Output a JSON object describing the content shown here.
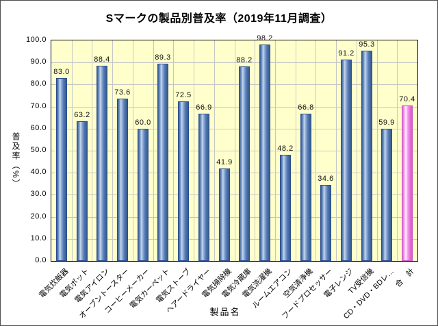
{
  "colors": {
    "plot_background": "#FFFFCC",
    "gridline": "#C6C6C6",
    "axis": "#000000",
    "bar_blue_edge": "#35598F",
    "bar_blue_highlight": "#C6D7EE",
    "bar_total_pink_edge": "#DC60D4",
    "bar_total_pink_highlight": "#FFF4FE"
  },
  "chart_data": {
    "type": "bar",
    "title": "Sマークの製品別普及率（2019年11月調査）",
    "xlabel": "製品名",
    "ylabel": "普及率（%）",
    "ylim": [
      0,
      100
    ],
    "ytick_step": 10,
    "yticks": [
      "0.0",
      "10.0",
      "20.0",
      "30.0",
      "40.0",
      "50.0",
      "60.0",
      "70.0",
      "80.0",
      "90.0",
      "100.0"
    ],
    "grid": true,
    "legend_position": "none",
    "categories": [
      "電気炊飯器",
      "電気ポット",
      "電気アイロン",
      "オーブントースター",
      "コーヒーメーカー",
      "電気カーペット",
      "電気ストーブ",
      "ヘアードライヤー",
      "電気掃除機",
      "電気冷蔵庫",
      "電気洗濯機",
      "ルームエアコン",
      "空気清浄機",
      "フードプロセッサー",
      "電子レンジ",
      "TV受信機",
      "CD・DVD・BDレ…",
      "合　計"
    ],
    "values": [
      83.0,
      63.2,
      88.4,
      73.6,
      60.0,
      89.3,
      72.5,
      66.9,
      41.9,
      88.2,
      98.2,
      48.2,
      66.8,
      34.6,
      91.2,
      95.3,
      59.9,
      70.4
    ],
    "value_labels": [
      "83.0",
      "63.2",
      "88.4",
      "73.6",
      "60.0",
      "89.3",
      "72.5",
      "66.9",
      "41.9",
      "88.2",
      "98.2",
      "48.2",
      "66.8",
      "34.6",
      "91.2",
      "95.3",
      "59.9",
      "70.4"
    ],
    "highlight_index": 17
  }
}
